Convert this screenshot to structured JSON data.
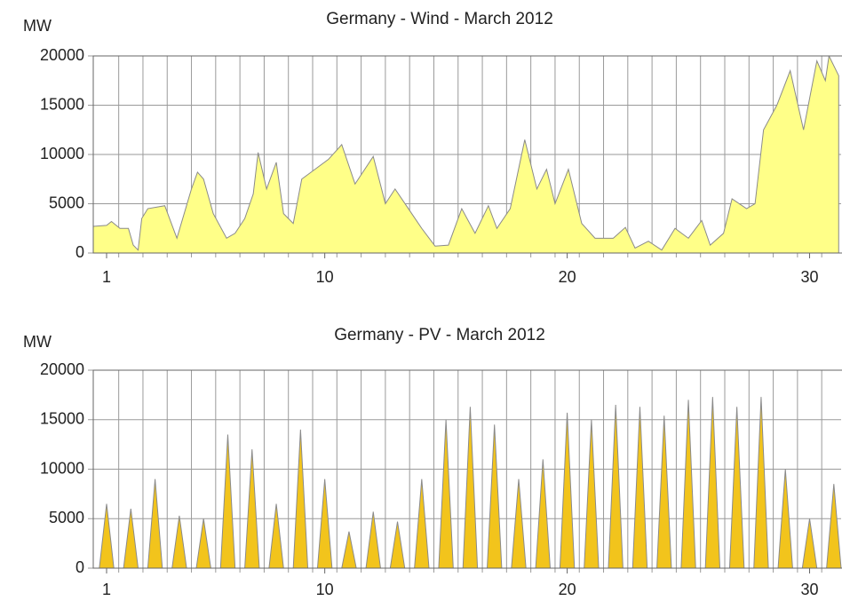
{
  "chart_data": [
    {
      "type": "area",
      "title": "Germany - Wind - March 2012",
      "ylabel": "MW",
      "x": [
        0.45,
        1,
        1.2,
        1.55,
        1.9,
        2.1,
        2.3,
        2.45,
        2.7,
        3.4,
        3.9,
        4.5,
        4.75,
        5.0,
        5.4,
        5.95,
        6.3,
        6.7,
        7.05,
        7.25,
        7.6,
        8.0,
        8.3,
        8.7,
        9.05,
        9.6,
        10.15,
        10.7,
        11.25,
        12.0,
        12.5,
        12.9,
        13.45,
        14.0,
        14.55,
        15.1,
        15.65,
        16.2,
        16.75,
        17.1,
        17.65,
        18.25,
        18.75,
        19.15,
        19.5,
        20.05,
        20.6,
        21.15,
        21.9,
        22.4,
        22.8,
        23.35,
        23.9,
        24.45,
        25.0,
        25.55,
        25.9,
        26.45,
        26.8,
        27.4,
        27.75,
        28.1,
        28.65,
        29.2,
        29.75,
        30.3,
        30.65,
        30.8,
        31.2
      ],
      "values": [
        2700,
        2800,
        3200,
        2500,
        2500,
        800,
        300,
        3500,
        4500,
        4800,
        1500,
        6500,
        8200,
        7500,
        4000,
        1500,
        2000,
        3500,
        6000,
        10200,
        6500,
        9200,
        4000,
        3000,
        7500,
        8500,
        9500,
        11000,
        7000,
        9800,
        5000,
        6500,
        4500,
        2500,
        700,
        800,
        4500,
        2000,
        4800,
        2500,
        4500,
        11500,
        6500,
        8500,
        5000,
        8500,
        3000,
        1500,
        1500,
        2600,
        500,
        1200,
        300,
        2500,
        1500,
        3300,
        800,
        2000,
        5500,
        4500,
        5000,
        12500,
        15000,
        18500,
        12500,
        19500,
        17500,
        20000,
        18000
      ],
      "color": "#ffff88",
      "xlim": [
        0.45,
        31.3
      ],
      "xticks": [
        1,
        10,
        20,
        30
      ],
      "xgrid": [
        1.5,
        2.5,
        3.5,
        4.5,
        5.5,
        6.5,
        7.5,
        8.5,
        9.5,
        10.5,
        11.5,
        12.5,
        13.5,
        14.5,
        15.5,
        16.5,
        17.5,
        18.5,
        19.5,
        20.5,
        21.5,
        22.5,
        23.5,
        24.5,
        25.5,
        26.5,
        27.5,
        28.5,
        29.5,
        30.5
      ],
      "ylim": [
        0,
        20000
      ],
      "yticks": [
        0,
        5000,
        10000,
        15000,
        20000
      ],
      "grid": true
    },
    {
      "type": "area",
      "title": "Germany - PV - March 2012",
      "ylabel": "MW",
      "x": [
        0.7,
        1,
        1.3,
        1.7,
        2,
        2.3,
        2.7,
        3,
        3.3,
        3.7,
        4,
        4.3,
        4.7,
        5,
        5.3,
        5.7,
        6,
        6.3,
        6.7,
        7,
        7.3,
        7.7,
        8,
        8.3,
        8.7,
        9,
        9.3,
        9.7,
        10,
        10.3,
        10.7,
        11,
        11.3,
        11.7,
        12,
        12.3,
        12.7,
        13,
        13.3,
        13.7,
        14,
        14.3,
        14.7,
        15,
        15.3,
        15.7,
        16,
        16.3,
        16.7,
        17,
        17.3,
        17.7,
        18,
        18.3,
        18.7,
        19,
        19.3,
        19.7,
        20,
        20.3,
        20.7,
        21,
        21.3,
        21.7,
        22,
        22.3,
        22.7,
        23,
        23.3,
        23.7,
        24,
        24.3,
        24.7,
        25,
        25.3,
        25.7,
        26,
        26.3,
        26.7,
        27,
        27.3,
        27.7,
        28,
        28.3,
        28.7,
        29,
        29.3,
        29.7,
        30,
        30.3,
        30.7,
        31,
        31.3
      ],
      "values": [
        0,
        6500,
        0,
        0,
        6000,
        0,
        0,
        9000,
        0,
        0,
        5300,
        0,
        0,
        5000,
        0,
        0,
        13500,
        0,
        0,
        12000,
        0,
        0,
        6500,
        0,
        0,
        14000,
        0,
        0,
        9000,
        0,
        0,
        3700,
        0,
        0,
        5700,
        0,
        0,
        4700,
        0,
        0,
        9000,
        0,
        0,
        15000,
        0,
        0,
        16300,
        0,
        0,
        14500,
        0,
        0,
        9000,
        0,
        0,
        11000,
        0,
        0,
        15700,
        0,
        0,
        15000,
        0,
        0,
        16500,
        0,
        0,
        16300,
        0,
        0,
        15400,
        0,
        0,
        17000,
        0,
        0,
        17300,
        0,
        0,
        16300,
        0,
        0,
        17300,
        0,
        0,
        10000,
        0,
        0,
        5000,
        0,
        0,
        8500,
        0
      ],
      "color": "#f2c41c",
      "xlim": [
        0.45,
        31.3
      ],
      "xticks": [
        1,
        10,
        20,
        30
      ],
      "xgrid": [
        1.5,
        2.5,
        3.5,
        4.5,
        5.5,
        6.5,
        7.5,
        8.5,
        9.5,
        10.5,
        11.5,
        12.5,
        13.5,
        14.5,
        15.5,
        16.5,
        17.5,
        18.5,
        19.5,
        20.5,
        21.5,
        22.5,
        23.5,
        24.5,
        25.5,
        26.5,
        27.5,
        28.5,
        29.5,
        30.5
      ],
      "ylim": [
        0,
        20000
      ],
      "yticks": [
        0,
        5000,
        10000,
        15000,
        20000
      ],
      "grid": true
    }
  ]
}
